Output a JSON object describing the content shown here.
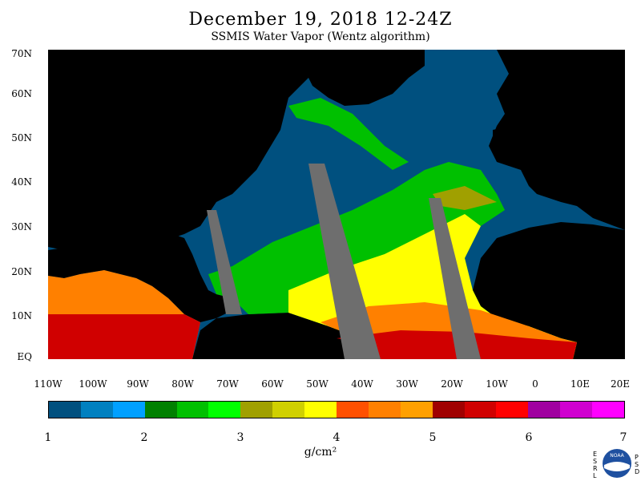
{
  "header": {
    "title": "December 19, 2018 12-24Z",
    "subtitle": "SSMIS Water Vapor (Wentz algorithm)"
  },
  "map": {
    "lat_labels": [
      "70N",
      "60N",
      "50N",
      "40N",
      "30N",
      "20N",
      "10N",
      "EQ"
    ],
    "lon_labels": [
      "110W",
      "100W",
      "90W",
      "80W",
      "70W",
      "60W",
      "50W",
      "40W",
      "30W",
      "20W",
      "10W",
      "0",
      "10E",
      "20E"
    ]
  },
  "legend": {
    "colors": [
      "#00507f",
      "#0080c0",
      "#00a0ff",
      "#008000",
      "#00c000",
      "#00ff00",
      "#a0a000",
      "#d0d000",
      "#ffff00",
      "#ff5000",
      "#ff8000",
      "#ffa000",
      "#a00000",
      "#d00000",
      "#ff0000",
      "#a000a0",
      "#d000d0",
      "#ff00ff"
    ],
    "tick_labels": [
      "1",
      "2",
      "3",
      "4",
      "5",
      "6",
      "7"
    ],
    "units": "g/cm²"
  },
  "logo": {
    "left_letters": [
      "E",
      "S",
      "R",
      "L"
    ],
    "right_letters": [
      "P",
      "S",
      "D"
    ],
    "text": "NOAA"
  }
}
